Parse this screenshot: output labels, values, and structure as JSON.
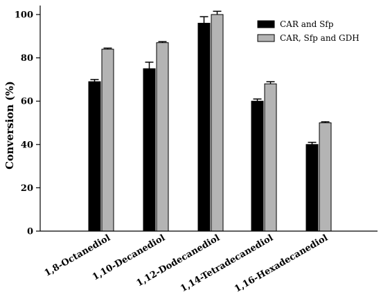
{
  "chart_data": {
    "type": "bar",
    "ylabel": "Conversion (%)",
    "xlabel": "",
    "ylim": [
      0,
      100
    ],
    "yticks": [
      0,
      20,
      40,
      60,
      80,
      100
    ],
    "categories": [
      "1,8-Octanediol",
      "1,10-Decanediol",
      "1,12-Dodecanediol",
      "1,14-Tetradecanediol",
      "1,16-Hexadecanediol"
    ],
    "series": [
      {
        "name": "CAR and Sfp",
        "color": "#000000",
        "values": [
          69,
          75,
          96,
          60,
          40
        ],
        "errors": [
          1,
          3,
          3,
          1,
          1
        ]
      },
      {
        "name": "CAR, Sfp and GDH",
        "color": "#b4b4b4",
        "values": [
          84,
          87,
          100,
          68,
          50
        ],
        "errors": [
          0.5,
          0.5,
          1.5,
          1,
          0.5
        ]
      }
    ],
    "legend_position": "top-right",
    "grid": false
  }
}
